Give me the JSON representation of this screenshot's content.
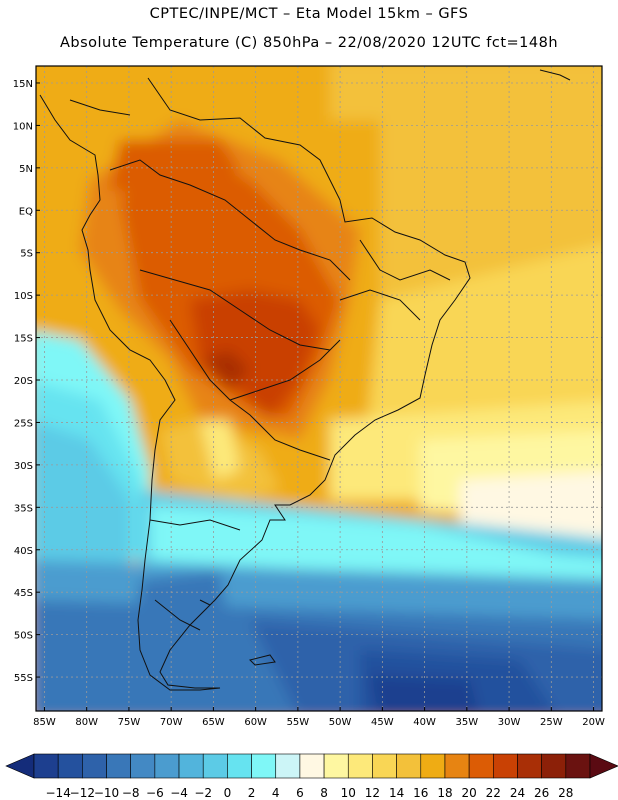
{
  "header": {
    "line1": "CPTEC/INPE/MCT –  Eta Model 15km – GFS",
    "line2": "Absolute Temperature (C) 850hPa – 22/08/2020 12UTC fct=148h"
  },
  "map": {
    "lon_range": [
      -86,
      -19
    ],
    "lat_range": [
      -59,
      17
    ],
    "lat_ticks": [
      "15N",
      "10N",
      "5N",
      "EQ",
      "5S",
      "10S",
      "15S",
      "20S",
      "25S",
      "30S",
      "35S",
      "40S",
      "45S",
      "50S",
      "55S"
    ],
    "lat_values": [
      15,
      10,
      5,
      0,
      -5,
      -10,
      -15,
      -20,
      -25,
      -30,
      -35,
      -40,
      -45,
      -50,
      -55
    ],
    "lon_ticks": [
      "85W",
      "80W",
      "75W",
      "70W",
      "65W",
      "60W",
      "55W",
      "50W",
      "45W",
      "40W",
      "35W",
      "30W",
      "25W",
      "20W"
    ],
    "lon_values": [
      -85,
      -80,
      -75,
      -70,
      -65,
      -60,
      -55,
      -50,
      -45,
      -40,
      -35,
      -30,
      -25,
      -20
    ]
  },
  "colorbar": {
    "labels": [
      "-14",
      "-12",
      "-10",
      "-8",
      "-6",
      "-4",
      "-2",
      "0",
      "2",
      "4",
      "6",
      "8",
      "10",
      "12",
      "14",
      "16",
      "18",
      "20",
      "22",
      "24",
      "26",
      "28"
    ],
    "colors": [
      "#1d3f8f",
      "#24519e",
      "#2e62aa",
      "#3977b8",
      "#4389c4",
      "#4b9ccf",
      "#52b4dc",
      "#5ccbe6",
      "#66e3f0",
      "#7ff7f7",
      "#ccf5f7",
      "#fff8e3",
      "#fef7a1",
      "#fde97a",
      "#f9d655",
      "#f3c13a",
      "#efac14",
      "#e78412",
      "#dc5c05",
      "#c94104",
      "#a92f06",
      "#8c2008",
      "#6a1210"
    ],
    "under_color": "#142c7a",
    "over_color": "#5a0a12"
  },
  "legend_values": {
    "n_colors": 23
  }
}
